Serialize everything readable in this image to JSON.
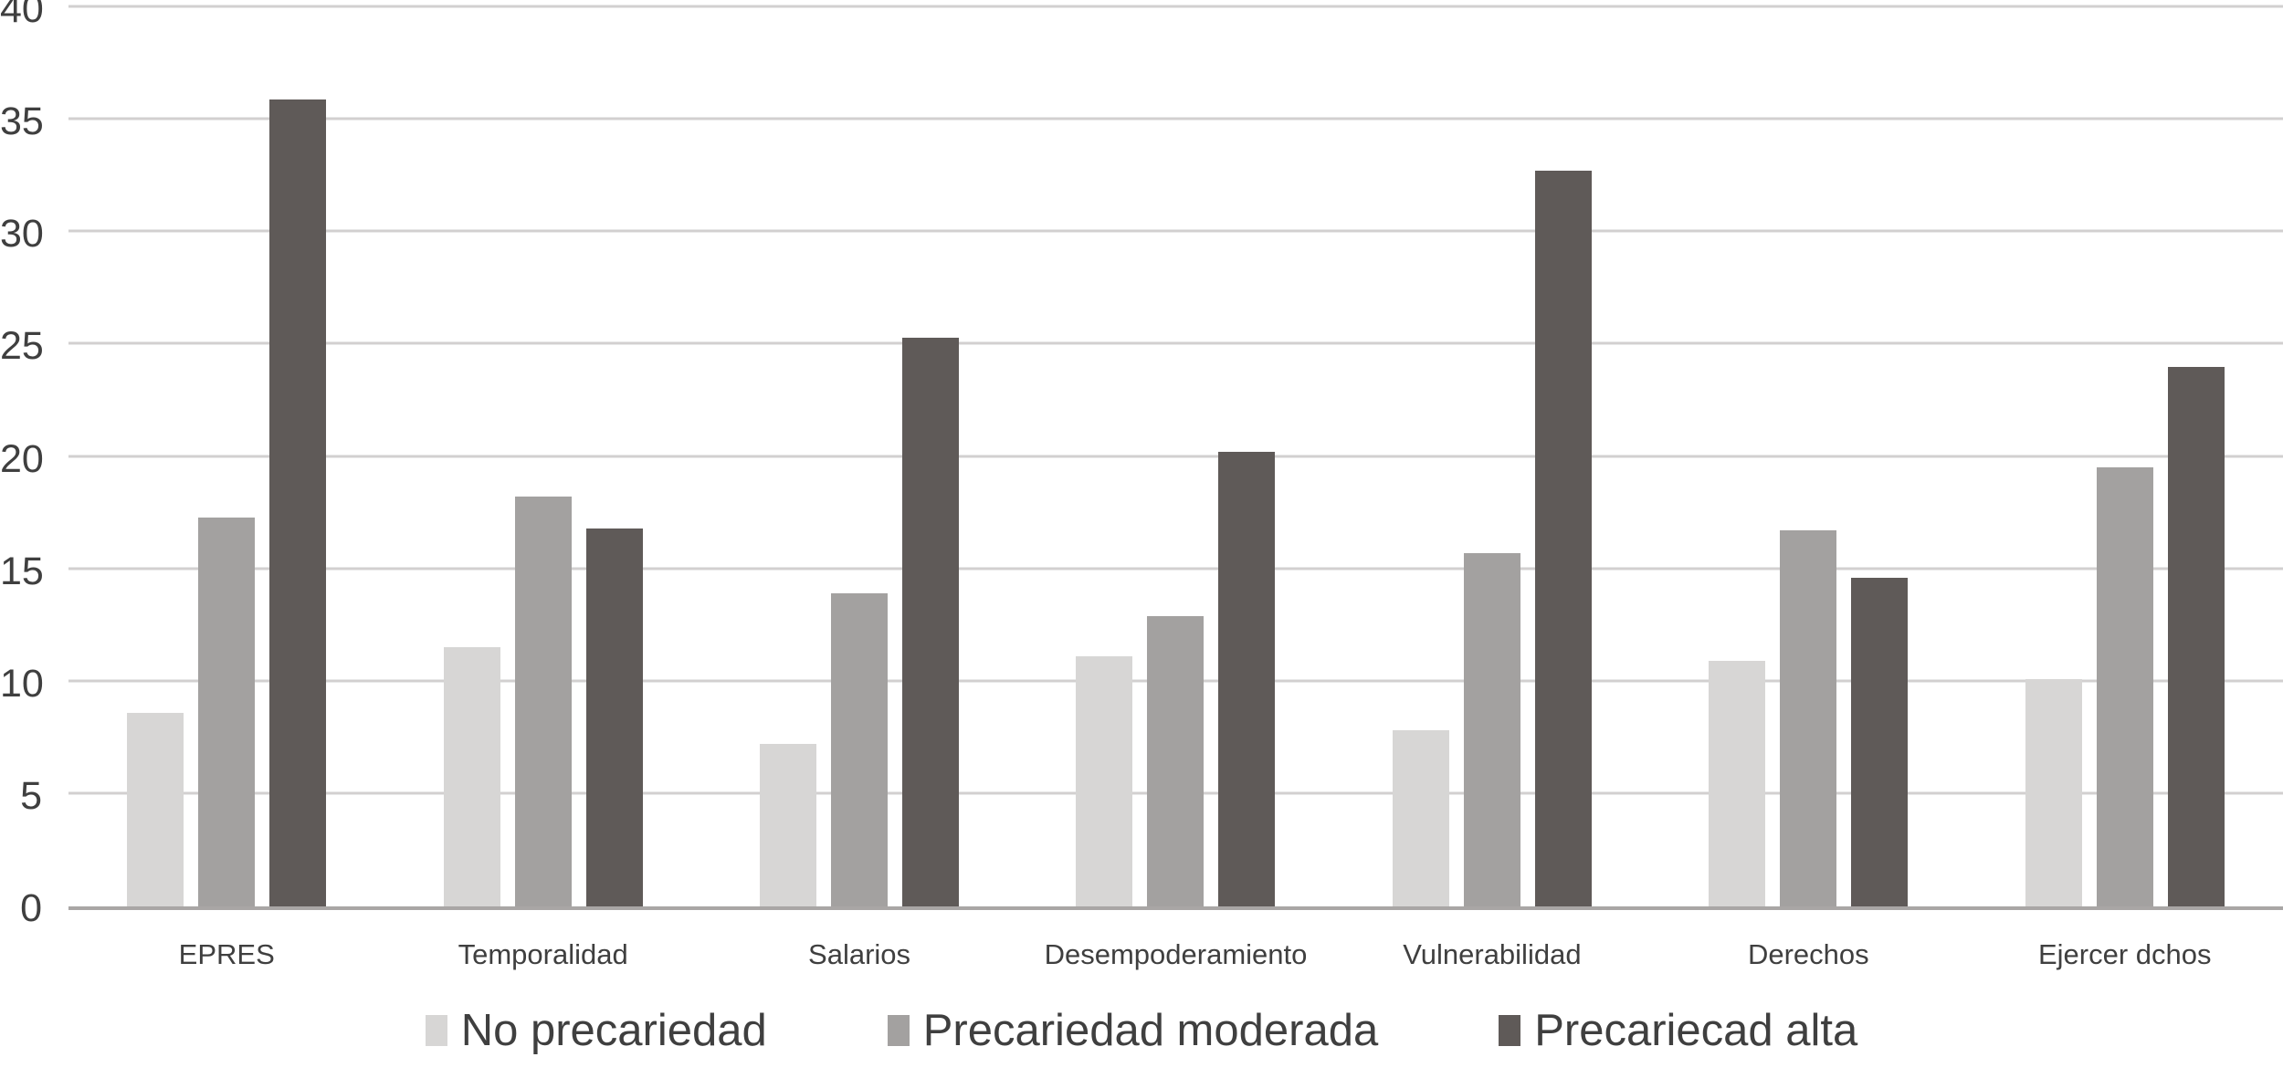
{
  "chart_data": {
    "type": "bar",
    "title": "",
    "xlabel": "",
    "ylabel": "",
    "categories": [
      "EPRES",
      "Temporalidad",
      "Salarios",
      "Desempoderamiento",
      "Vulnerabilidad",
      "Derechos",
      "Ejercer dchos"
    ],
    "series": [
      {
        "name": "No precariedad",
        "color": "#d7d6d5",
        "values": [
          8.7,
          11.6,
          7.3,
          11.2,
          7.9,
          11.0,
          10.2
        ]
      },
      {
        "name": "Precariedad moderada",
        "color": "#a3a1a0",
        "values": [
          17.4,
          18.3,
          14.0,
          13.0,
          15.8,
          16.8,
          19.6
        ]
      },
      {
        "name": "Precariecad alta",
        "color": "#5f5a58",
        "values": [
          36.0,
          16.9,
          25.4,
          20.3,
          32.8,
          14.7,
          24.1
        ]
      }
    ],
    "ylim": [
      0,
      40
    ],
    "y_ticks": [
      0,
      5,
      10,
      15,
      20,
      25,
      30,
      35,
      40
    ],
    "grid": "horizontal",
    "legend_position": "bottom"
  },
  "colors": {
    "gridline": "#d2d0d0",
    "baseline": "#a9a6a5",
    "text": "#3f3f3f",
    "background": "#ffffff"
  }
}
